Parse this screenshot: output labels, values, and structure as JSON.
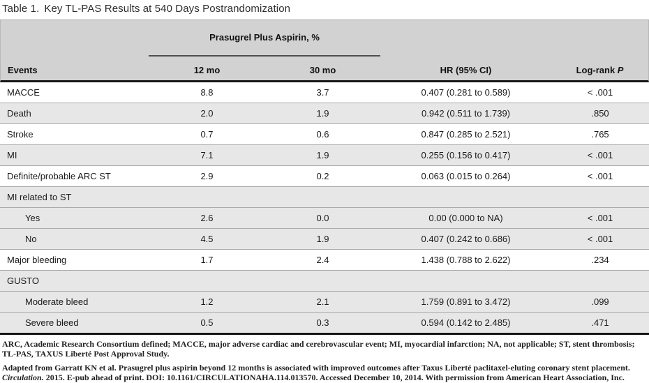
{
  "title": {
    "label": "Table 1.",
    "text": "Key TL-PAS Results at 540 Days Postrandomization"
  },
  "table": {
    "spanner": "Prasugrel Plus Aspirin, %",
    "columns": {
      "events": "Events",
      "mo12": "12 mo",
      "mo30": "30 mo",
      "hr": "HR (95% CI)",
      "logrank_prefix": "Log-rank ",
      "logrank_p": "P"
    },
    "rows": [
      {
        "event": "MACCE",
        "indent": false,
        "shaded": false,
        "mo12": "8.8",
        "mo30": "3.7",
        "hr": "0.407 (0.281 to 0.589)",
        "p": "< .001"
      },
      {
        "event": "Death",
        "indent": false,
        "shaded": true,
        "mo12": "2.0",
        "mo30": "1.9",
        "hr": "0.942 (0.511 to 1.739)",
        "p": ".850"
      },
      {
        "event": "Stroke",
        "indent": false,
        "shaded": false,
        "mo12": "0.7",
        "mo30": "0.6",
        "hr": "0.847 (0.285 to 2.521)",
        "p": ".765"
      },
      {
        "event": "MI",
        "indent": false,
        "shaded": true,
        "mo12": "7.1",
        "mo30": "1.9",
        "hr": "0.255 (0.156 to 0.417)",
        "p": "< .001"
      },
      {
        "event": "Definite/probable ARC ST",
        "indent": false,
        "shaded": false,
        "mo12": "2.9",
        "mo30": "0.2",
        "hr": "0.063 (0.015 to 0.264)",
        "p": "< .001"
      },
      {
        "event": "MI related to ST",
        "indent": false,
        "shaded": true,
        "mo12": "",
        "mo30": "",
        "hr": "",
        "p": ""
      },
      {
        "event": "Yes",
        "indent": true,
        "shaded": true,
        "mo12": "2.6",
        "mo30": "0.0",
        "hr": "0.00 (0.000 to NA)",
        "p": "< .001"
      },
      {
        "event": "No",
        "indent": true,
        "shaded": true,
        "mo12": "4.5",
        "mo30": "1.9",
        "hr": "0.407 (0.242 to 0.686)",
        "p": "< .001"
      },
      {
        "event": "Major bleeding",
        "indent": false,
        "shaded": false,
        "mo12": "1.7",
        "mo30": "2.4",
        "hr": "1.438 (0.788 to 2.622)",
        "p": ".234"
      },
      {
        "event": "GUSTO",
        "indent": false,
        "shaded": true,
        "mo12": "",
        "mo30": "",
        "hr": "",
        "p": ""
      },
      {
        "event": "Moderate bleed",
        "indent": true,
        "shaded": true,
        "mo12": "1.2",
        "mo30": "2.1",
        "hr": "1.759 (0.891 to 3.472)",
        "p": ".099"
      },
      {
        "event": "Severe bleed",
        "indent": true,
        "shaded": true,
        "mo12": "0.5",
        "mo30": "0.3",
        "hr": "0.594 (0.142 to 2.485)",
        "p": ".471"
      }
    ]
  },
  "footnotes": {
    "abbreviations": "ARC, Academic Research Consortium defined; MACCE, major adverse cardiac and cerebrovascular event; MI, myocardial infarction; NA, not applicable; ST, stent thrombosis; TL-PAS, TAXUS Liberté Post Approval Study.",
    "source_before_journal": "Adapted from Garratt KN et al. Prasugrel plus aspirin beyond 12 months is associated with improved outcomes after Taxus Liberté paclitaxel-eluting coronary stent placement. ",
    "journal": "Circulation.",
    "source_after_journal": " 2015. E-pub ahead of print. DOI: 10.1161/CIRCULATIONAHA.114.013570. Accessed December 10, 2014. With permission from American Heart Association, Inc."
  },
  "colors": {
    "header_bg": "#d2d2d2",
    "shaded_row_bg": "#e7e7e7",
    "plain_row_bg": "#ffffff",
    "thick_rule": "#161616",
    "row_separator": "#aaaaaa",
    "spanner_underline": "#4f4f4f",
    "text": "#1a1a1a"
  }
}
